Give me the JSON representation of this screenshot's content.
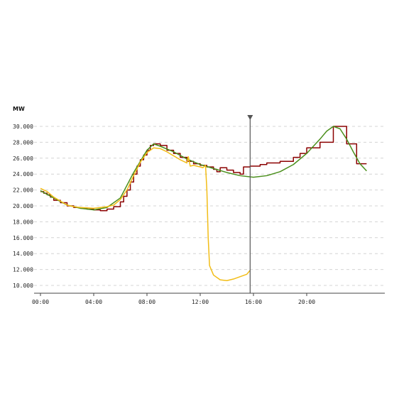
{
  "chart_data": {
    "type": "line",
    "unit_label": "MW",
    "title": "",
    "xlabel": "",
    "ylabel": "",
    "x_unit": "hour of day",
    "xlim": [
      0,
      26
    ],
    "ylim": [
      9500,
      30500
    ],
    "y_ticks": [
      10000,
      12000,
      14000,
      16000,
      18000,
      20000,
      22000,
      24000,
      26000,
      28000,
      30000
    ],
    "y_tick_labels": [
      "10.000",
      "12.000",
      "14.000",
      "16.000",
      "18.000",
      "20.000",
      "22.000",
      "24.000",
      "26.000",
      "28.000",
      "30.000"
    ],
    "x_ticks": [
      0,
      4,
      8,
      12,
      16,
      20
    ],
    "x_tick_labels": [
      "00:00",
      "04:00",
      "08:00",
      "12:00",
      "16:00",
      "20:00"
    ],
    "grid": true,
    "legend": "none",
    "current_time_marker": 15.75,
    "series": [
      {
        "color": "#8b0000",
        "style": "step",
        "points": [
          [
            0,
            21800
          ],
          [
            0.25,
            21600
          ],
          [
            0.5,
            21400
          ],
          [
            0.75,
            21100
          ],
          [
            1,
            20700
          ],
          [
            1.5,
            20400
          ],
          [
            2,
            20000
          ],
          [
            2.5,
            19800
          ],
          [
            3,
            19700
          ],
          [
            3.5,
            19600
          ],
          [
            4,
            19500
          ],
          [
            4.5,
            19400
          ],
          [
            5,
            19600
          ],
          [
            5.5,
            19900
          ],
          [
            6,
            20500
          ],
          [
            6.25,
            21200
          ],
          [
            6.5,
            22000
          ],
          [
            6.75,
            23000
          ],
          [
            7,
            24000
          ],
          [
            7.25,
            25000
          ],
          [
            7.5,
            25800
          ],
          [
            7.75,
            26400
          ],
          [
            8,
            27000
          ],
          [
            8.25,
            27600
          ],
          [
            8.5,
            27800
          ],
          [
            9,
            27600
          ],
          [
            9.5,
            27000
          ],
          [
            10,
            26600
          ],
          [
            10.5,
            26100
          ],
          [
            11,
            25600
          ],
          [
            11.5,
            25300
          ],
          [
            12,
            25100
          ],
          [
            12.5,
            24900
          ],
          [
            13,
            24600
          ],
          [
            13.25,
            24300
          ],
          [
            13.5,
            24800
          ],
          [
            14,
            24500
          ],
          [
            14.5,
            24200
          ],
          [
            15,
            24000
          ],
          [
            15.25,
            24900
          ],
          [
            15.75,
            25000
          ],
          [
            16.5,
            25200
          ],
          [
            17,
            25400
          ],
          [
            18,
            25600
          ],
          [
            19,
            26100
          ],
          [
            19.5,
            26600
          ],
          [
            20,
            27300
          ],
          [
            21,
            28000
          ],
          [
            22,
            30000
          ],
          [
            23,
            27800
          ],
          [
            23.75,
            25300
          ],
          [
            24.5,
            25300
          ]
        ]
      },
      {
        "color": "#4a8f1c",
        "style": "line",
        "points": [
          [
            0,
            21900
          ],
          [
            1,
            21000
          ],
          [
            2,
            20100
          ],
          [
            3,
            19700
          ],
          [
            4,
            19500
          ],
          [
            5,
            19800
          ],
          [
            6,
            21000
          ],
          [
            7,
            24200
          ],
          [
            7.5,
            25600
          ],
          [
            8,
            27000
          ],
          [
            8.5,
            27800
          ],
          [
            9,
            27500
          ],
          [
            10,
            26800
          ],
          [
            11,
            25900
          ],
          [
            12,
            25200
          ],
          [
            13,
            24700
          ],
          [
            14,
            24200
          ],
          [
            15,
            23800
          ],
          [
            16,
            23600
          ],
          [
            17,
            23800
          ],
          [
            18,
            24300
          ],
          [
            19,
            25200
          ],
          [
            20,
            26600
          ],
          [
            21,
            28400
          ],
          [
            21.5,
            29400
          ],
          [
            22,
            30000
          ],
          [
            22.5,
            29700
          ],
          [
            23,
            28400
          ],
          [
            23.5,
            26800
          ],
          [
            24,
            25300
          ],
          [
            24.5,
            24400
          ]
        ]
      },
      {
        "color": "#f2bd17",
        "style": "line",
        "points": [
          [
            0,
            22200
          ],
          [
            0.5,
            21800
          ],
          [
            1,
            21100
          ],
          [
            1.5,
            20600
          ],
          [
            2,
            20100
          ],
          [
            2.5,
            19900
          ],
          [
            3,
            19800
          ],
          [
            3.5,
            19750
          ],
          [
            4,
            19700
          ],
          [
            4.5,
            19800
          ],
          [
            5,
            19900
          ],
          [
            5.5,
            20100
          ],
          [
            6,
            20800
          ],
          [
            6.5,
            22000
          ],
          [
            7,
            23800
          ],
          [
            7.5,
            25500
          ],
          [
            8,
            26700
          ],
          [
            8.5,
            27300
          ],
          [
            9,
            27200
          ],
          [
            9.5,
            26800
          ],
          [
            10,
            26300
          ],
          [
            10.5,
            25800
          ],
          [
            11,
            25400
          ],
          [
            11.1,
            26200
          ],
          [
            11.25,
            25000
          ],
          [
            11.5,
            25100
          ],
          [
            12,
            24900
          ],
          [
            12.2,
            24800
          ],
          [
            12.4,
            25100
          ],
          [
            12.5,
            22000
          ],
          [
            12.6,
            16000
          ],
          [
            12.7,
            12500
          ],
          [
            13,
            11300
          ],
          [
            13.5,
            10700
          ],
          [
            14,
            10600
          ],
          [
            14.5,
            10800
          ],
          [
            15,
            11100
          ],
          [
            15.5,
            11400
          ],
          [
            15.75,
            11900
          ]
        ]
      }
    ]
  }
}
